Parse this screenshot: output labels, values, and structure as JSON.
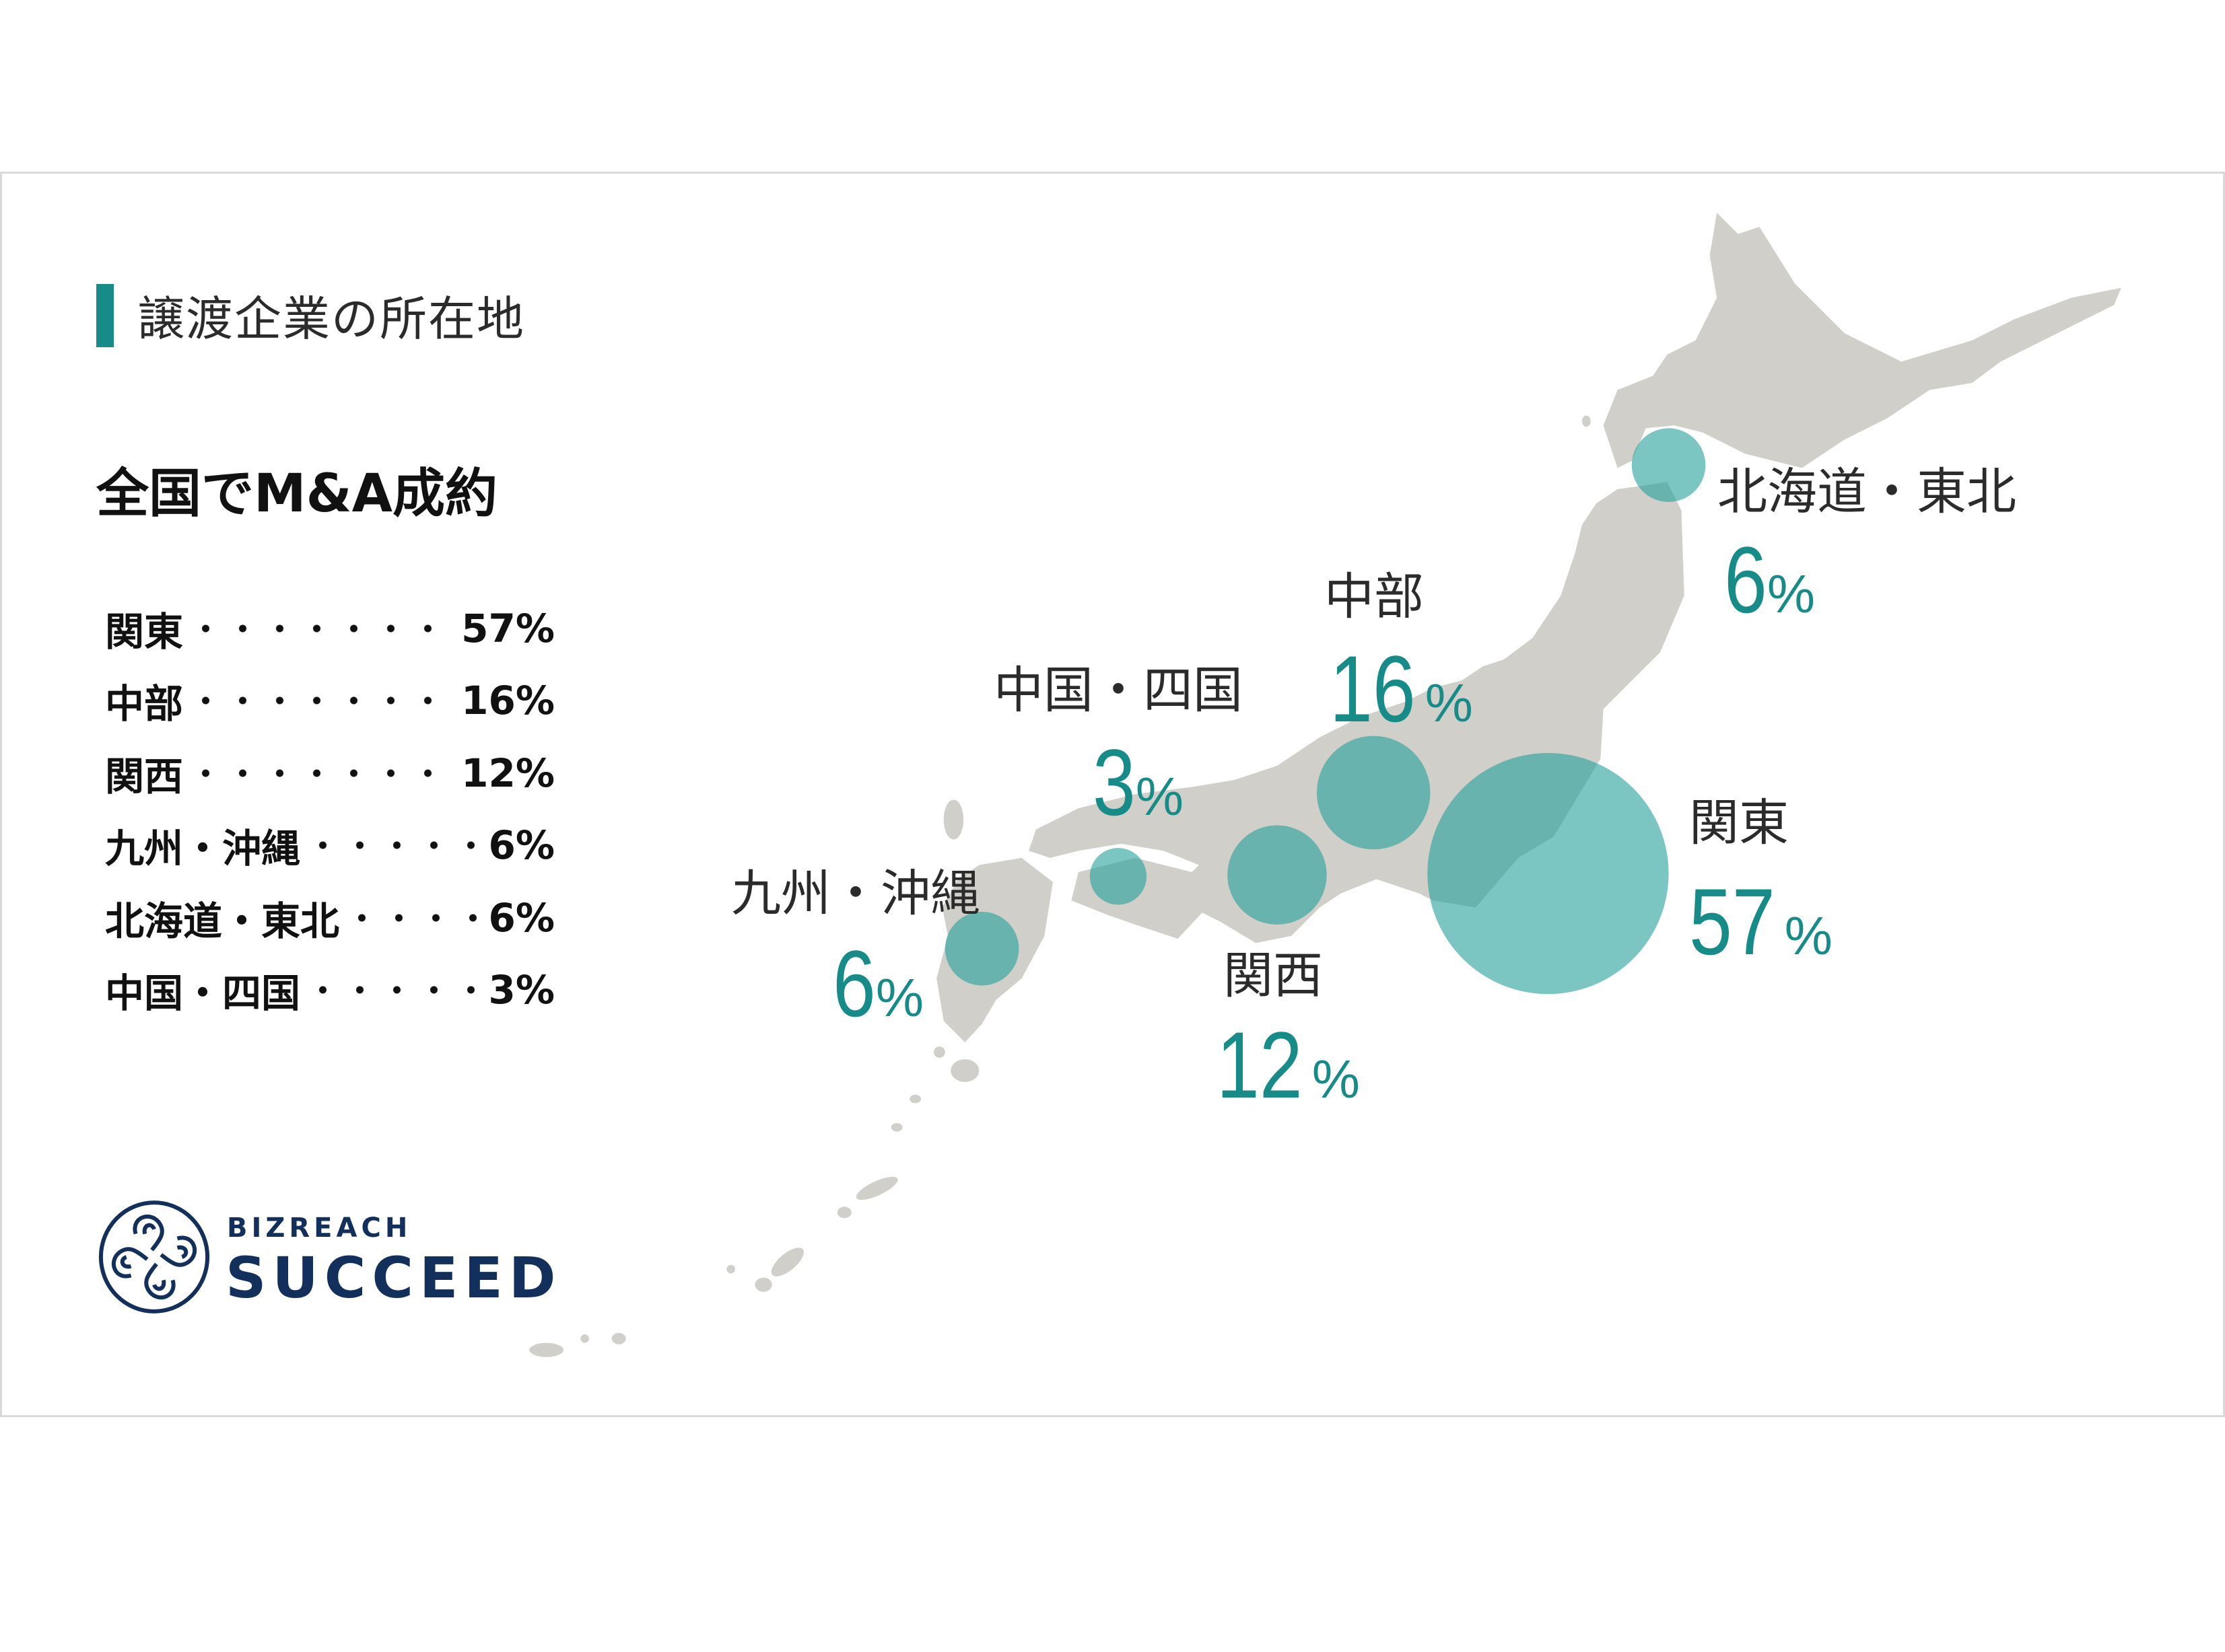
{
  "title": "譲渡企業の所在地",
  "heading": "全国でM&A成約",
  "summary_list": [
    {
      "label": "関東",
      "value": "57%"
    },
    {
      "label": "中部",
      "value": "16%"
    },
    {
      "label": "関西",
      "value": "12%"
    },
    {
      "label": "九州・沖縄",
      "value": "6%"
    },
    {
      "label": "北海道・東北",
      "value": "6%"
    },
    {
      "label": "中国・四国",
      "value": "3%"
    }
  ],
  "map": {
    "land_color": "#d0cfca",
    "bubble_color": "#2aa19d",
    "accent_color": "#168b88",
    "regions": {
      "hokkaido_tohoku": {
        "name": "北海道・東北",
        "value": "6",
        "unit": "%"
      },
      "chubu": {
        "name": "中部",
        "value": "16",
        "unit": "%"
      },
      "chugoku_shikoku": {
        "name": "中国・四国",
        "value": "3",
        "unit": "%"
      },
      "kanto": {
        "name": "関東",
        "value": "57",
        "unit": "%"
      },
      "kyushu_okinawa": {
        "name": "九州・沖縄",
        "value": "6",
        "unit": "%"
      },
      "kansai": {
        "name": "関西",
        "value": "12",
        "unit": "%"
      }
    }
  },
  "logo": {
    "top": "BIZREACH",
    "main": "SUCCEED",
    "color": "#12305b"
  }
}
